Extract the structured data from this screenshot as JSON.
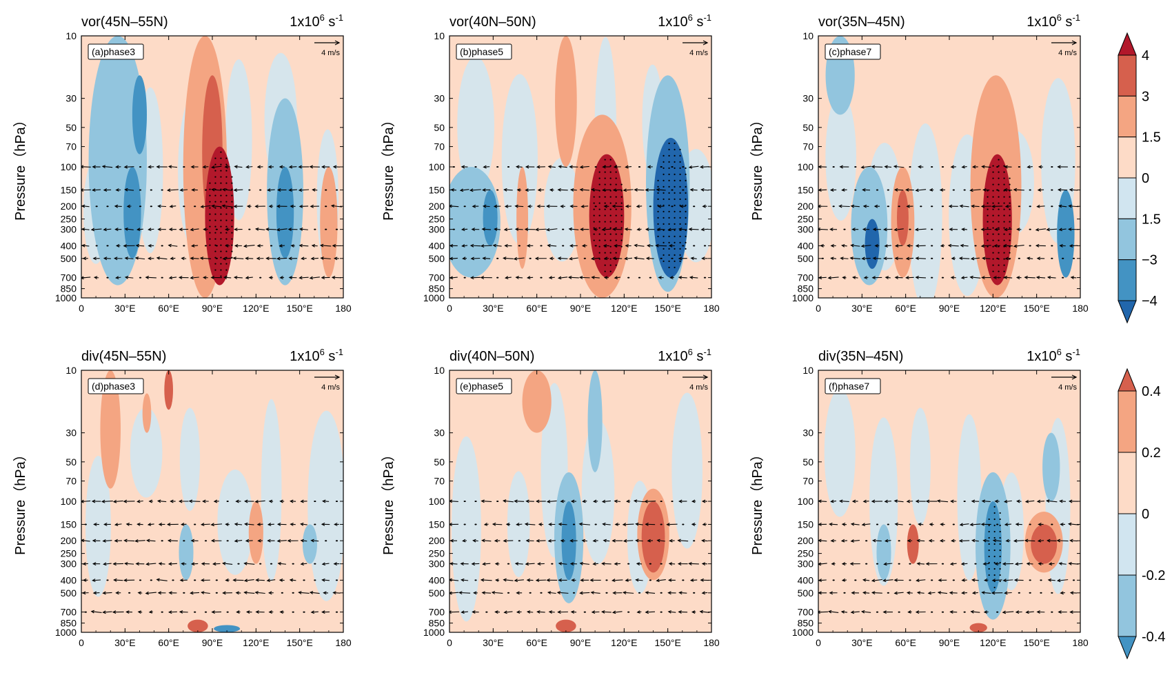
{
  "figure": {
    "panels": [
      {
        "label": "(a)phase3",
        "title": "vor(45N–55N)",
        "units_base": "1x10",
        "units_exp": "6",
        "units_tail": " s",
        "units_tail_exp": "-1",
        "ref_vector": "4 m/s"
      },
      {
        "label": "(b)phase5",
        "title": "vor(40N–50N)",
        "units_base": "1x10",
        "units_exp": "6",
        "units_tail": " s",
        "units_tail_exp": "-1",
        "ref_vector": "4 m/s"
      },
      {
        "label": "(c)phase7",
        "title": "vor(35N–45N)",
        "units_base": "1x10",
        "units_exp": "6",
        "units_tail": " s",
        "units_tail_exp": "-1",
        "ref_vector": "4 m/s"
      },
      {
        "label": "(d)phase3",
        "title": "div(45N–55N)",
        "units_base": "1x10",
        "units_exp": "6",
        "units_tail": " s",
        "units_tail_exp": "-1",
        "ref_vector": "4 m/s"
      },
      {
        "label": "(e)phase5",
        "title": "div(40N–50N)",
        "units_base": "1x10",
        "units_exp": "6",
        "units_tail": " s",
        "units_tail_exp": "-1",
        "ref_vector": "4 m/s"
      },
      {
        "label": "(f)phase7",
        "title": "div(35N–45N)",
        "units_base": "1x10",
        "units_exp": "6",
        "units_tail": " s",
        "units_tail_exp": "-1",
        "ref_vector": "4 m/s"
      }
    ]
  },
  "chart_data": [
    {
      "type": "heatmap",
      "panel": "a",
      "title": "vor(45N–55N)",
      "label": "(a)phase3",
      "variable": "vorticity",
      "xlabel": "",
      "ylabel": "Pressure（hPa）",
      "xlim": [
        0,
        180
      ],
      "ylim": [
        1000,
        10
      ],
      "y_scale": "log",
      "x_ticks": [
        "0",
        "30°E",
        "60°E",
        "90°E",
        "120°E",
        "150°E",
        "180"
      ],
      "y_ticks": [
        "10",
        "30",
        "50",
        "70",
        "100",
        "150",
        "200",
        "250",
        "300",
        "400",
        "500",
        "700",
        "850",
        "1000"
      ],
      "features": [
        {
          "lon": 95,
          "p": 300,
          "value": 4.5,
          "lon_width": 20,
          "p_extent": [
            800,
            70
          ],
          "stippled": true
        },
        {
          "lon": 90,
          "p": 70,
          "value": 3,
          "lon_width": 14,
          "p_extent": [
            300,
            20
          ]
        },
        {
          "lon": 85,
          "p": 20,
          "value": 1.5,
          "lon_width": 30,
          "p_extent": [
            1000,
            10
          ]
        },
        {
          "lon": 35,
          "p": 200,
          "value": -3,
          "lon_width": 12,
          "p_extent": [
            500,
            100
          ]
        },
        {
          "lon": 40,
          "p": 40,
          "value": -3,
          "lon_width": 10,
          "p_extent": [
            80,
            20
          ]
        },
        {
          "lon": 25,
          "p": 150,
          "value": -1.5,
          "lon_width": 40,
          "p_extent": [
            800,
            10
          ]
        },
        {
          "lon": 140,
          "p": 250,
          "value": -3,
          "lon_width": 12,
          "p_extent": [
            500,
            100
          ]
        },
        {
          "lon": 140,
          "p": 100,
          "value": -1.5,
          "lon_width": 25,
          "p_extent": [
            800,
            30
          ]
        },
        {
          "lon": 170,
          "p": 300,
          "value": 1.5,
          "lon_width": 12,
          "p_extent": [
            700,
            100
          ]
        }
      ]
    },
    {
      "type": "heatmap",
      "panel": "b",
      "title": "vor(40N–50N)",
      "label": "(b)phase5",
      "variable": "vorticity",
      "xlabel": "",
      "ylabel": "Pressure（hPa）",
      "xlim": [
        0,
        180
      ],
      "ylim": [
        1000,
        10
      ],
      "y_scale": "log",
      "x_ticks": [
        "0",
        "30°E",
        "60°E",
        "90°E",
        "120°E",
        "150°E",
        "180"
      ],
      "y_ticks": [
        "10",
        "30",
        "50",
        "70",
        "100",
        "150",
        "200",
        "250",
        "300",
        "400",
        "500",
        "700",
        "850",
        "1000"
      ],
      "features": [
        {
          "lon": 108,
          "p": 300,
          "value": 4.5,
          "lon_width": 24,
          "p_extent": [
            700,
            80
          ],
          "stippled": true
        },
        {
          "lon": 105,
          "p": 150,
          "value": 1.5,
          "lon_width": 40,
          "p_extent": [
            1000,
            40
          ]
        },
        {
          "lon": 152,
          "p": 300,
          "value": -4.5,
          "lon_width": 24,
          "p_extent": [
            700,
            60
          ],
          "stippled": true
        },
        {
          "lon": 150,
          "p": 100,
          "value": -1.5,
          "lon_width": 30,
          "p_extent": [
            900,
            20
          ]
        },
        {
          "lon": 28,
          "p": 300,
          "value": -3,
          "lon_width": 10,
          "p_extent": [
            400,
            150
          ]
        },
        {
          "lon": 15,
          "p": 300,
          "value": -1.5,
          "lon_width": 40,
          "p_extent": [
            700,
            100
          ]
        },
        {
          "lon": 50,
          "p": 300,
          "value": 1.5,
          "lon_width": 8,
          "p_extent": [
            600,
            100
          ]
        },
        {
          "lon": 80,
          "p": 20,
          "value": 1.5,
          "lon_width": 15,
          "p_extent": [
            100,
            10
          ]
        }
      ]
    },
    {
      "type": "heatmap",
      "panel": "c",
      "title": "vor(35N–45N)",
      "label": "(c)phase7",
      "variable": "vorticity",
      "xlabel": "",
      "ylabel": "Pressure（hPa）",
      "xlim": [
        0,
        180
      ],
      "ylim": [
        1000,
        10
      ],
      "y_scale": "log",
      "x_ticks": [
        "0",
        "30°E",
        "60°E",
        "90°E",
        "120°E",
        "150°E",
        "180"
      ],
      "y_ticks": [
        "10",
        "30",
        "50",
        "70",
        "100",
        "150",
        "200",
        "250",
        "300",
        "400",
        "500",
        "700",
        "850",
        "1000"
      ],
      "features": [
        {
          "lon": 123,
          "p": 300,
          "value": 4.5,
          "lon_width": 20,
          "p_extent": [
            800,
            80
          ],
          "stippled": true
        },
        {
          "lon": 122,
          "p": 100,
          "value": 1.5,
          "lon_width": 35,
          "p_extent": [
            1000,
            20
          ]
        },
        {
          "lon": 37,
          "p": 400,
          "value": -4.5,
          "lon_width": 10,
          "p_extent": [
            600,
            250
          ]
        },
        {
          "lon": 35,
          "p": 300,
          "value": -1.5,
          "lon_width": 25,
          "p_extent": [
            800,
            100
          ]
        },
        {
          "lon": 58,
          "p": 250,
          "value": 3,
          "lon_width": 8,
          "p_extent": [
            400,
            150
          ]
        },
        {
          "lon": 58,
          "p": 250,
          "value": 1.5,
          "lon_width": 16,
          "p_extent": [
            700,
            100
          ]
        },
        {
          "lon": 170,
          "p": 350,
          "value": -3,
          "lon_width": 12,
          "p_extent": [
            700,
            150
          ]
        },
        {
          "lon": 15,
          "p": 15,
          "value": -1.5,
          "lon_width": 20,
          "p_extent": [
            40,
            10
          ]
        }
      ]
    },
    {
      "type": "heatmap",
      "panel": "d",
      "title": "div(45N–55N)",
      "label": "(d)phase3",
      "variable": "divergence",
      "xlabel": "",
      "ylabel": "Pressure（hPa）",
      "xlim": [
        0,
        180
      ],
      "ylim": [
        1000,
        10
      ],
      "y_scale": "log",
      "x_ticks": [
        "0",
        "30°E",
        "60°E",
        "90°E",
        "120°E",
        "150°E",
        "180"
      ],
      "y_ticks": [
        "10",
        "30",
        "50",
        "70",
        "100",
        "150",
        "200",
        "250",
        "300",
        "400",
        "500",
        "700",
        "850",
        "1000"
      ],
      "features": [
        {
          "lon": 80,
          "p": 920,
          "value": 0.45,
          "lon_width": 14,
          "p_extent": [
            1000,
            800
          ]
        },
        {
          "lon": 100,
          "p": 950,
          "value": -0.45,
          "lon_width": 18,
          "p_extent": [
            1000,
            880
          ]
        },
        {
          "lon": 120,
          "p": 200,
          "value": 0.3,
          "lon_width": 10,
          "p_extent": [
            300,
            100
          ]
        },
        {
          "lon": 72,
          "p": 250,
          "value": -0.3,
          "lon_width": 10,
          "p_extent": [
            400,
            150
          ]
        },
        {
          "lon": 157,
          "p": 200,
          "value": -0.3,
          "lon_width": 10,
          "p_extent": [
            300,
            150
          ]
        },
        {
          "lon": 60,
          "p": 15,
          "value": 0.45,
          "lon_width": 6,
          "p_extent": [
            20,
            10
          ]
        },
        {
          "lon": 20,
          "p": 40,
          "value": 0.2,
          "lon_width": 14,
          "p_extent": [
            80,
            10
          ]
        },
        {
          "lon": 45,
          "p": 20,
          "value": 0.3,
          "lon_width": 6,
          "p_extent": [
            30,
            15
          ]
        }
      ]
    },
    {
      "type": "heatmap",
      "panel": "e",
      "title": "div(40N–50N)",
      "label": "(e)phase5",
      "variable": "divergence",
      "xlabel": "",
      "ylabel": "Pressure（hPa）",
      "xlim": [
        0,
        180
      ],
      "ylim": [
        1000,
        10
      ],
      "y_scale": "log",
      "x_ticks": [
        "0",
        "30°E",
        "60°E",
        "90°E",
        "120°E",
        "150°E",
        "180"
      ],
      "y_ticks": [
        "10",
        "30",
        "50",
        "70",
        "100",
        "150",
        "200",
        "250",
        "300",
        "400",
        "500",
        "700",
        "850",
        "1000"
      ],
      "features": [
        {
          "lon": 140,
          "p": 200,
          "value": 0.45,
          "lon_width": 16,
          "p_extent": [
            350,
            100
          ]
        },
        {
          "lon": 140,
          "p": 200,
          "value": 0.3,
          "lon_width": 22,
          "p_extent": [
            400,
            80
          ]
        },
        {
          "lon": 82,
          "p": 200,
          "value": -0.45,
          "lon_width": 10,
          "p_extent": [
            400,
            100
          ]
        },
        {
          "lon": 82,
          "p": 250,
          "value": -0.2,
          "lon_width": 20,
          "p_extent": [
            600,
            60
          ]
        },
        {
          "lon": 80,
          "p": 930,
          "value": 0.45,
          "lon_width": 14,
          "p_extent": [
            1000,
            800
          ]
        },
        {
          "lon": 100,
          "p": 30,
          "value": -0.3,
          "lon_width": 10,
          "p_extent": [
            60,
            10
          ]
        },
        {
          "lon": 60,
          "p": 15,
          "value": 0.3,
          "lon_width": 20,
          "p_extent": [
            30,
            10
          ]
        }
      ]
    },
    {
      "type": "heatmap",
      "panel": "f",
      "title": "div(35N–45N)",
      "label": "(f)phase7",
      "variable": "divergence",
      "xlabel": "",
      "ylabel": "Pressure（hPa）",
      "xlim": [
        0,
        180
      ],
      "ylim": [
        1000,
        10
      ],
      "y_scale": "log",
      "x_ticks": [
        "0",
        "30°E",
        "60°E",
        "90°E",
        "120°E",
        "150°E",
        "180"
      ],
      "y_ticks": [
        "10",
        "30",
        "50",
        "70",
        "100",
        "150",
        "200",
        "250",
        "300",
        "400",
        "500",
        "700",
        "850",
        "1000"
      ],
      "features": [
        {
          "lon": 120,
          "p": 250,
          "value": -0.45,
          "lon_width": 12,
          "p_extent": [
            500,
            100
          ],
          "stippled": true
        },
        {
          "lon": 120,
          "p": 250,
          "value": -0.2,
          "lon_width": 24,
          "p_extent": [
            800,
            60
          ]
        },
        {
          "lon": 155,
          "p": 200,
          "value": 0.45,
          "lon_width": 18,
          "p_extent": [
            300,
            150
          ]
        },
        {
          "lon": 155,
          "p": 200,
          "value": 0.3,
          "lon_width": 26,
          "p_extent": [
            350,
            120
          ]
        },
        {
          "lon": 45,
          "p": 250,
          "value": -0.3,
          "lon_width": 10,
          "p_extent": [
            400,
            150
          ]
        },
        {
          "lon": 65,
          "p": 200,
          "value": 0.45,
          "lon_width": 8,
          "p_extent": [
            300,
            150
          ]
        },
        {
          "lon": 110,
          "p": 930,
          "value": 0.45,
          "lon_width": 12,
          "p_extent": [
            1000,
            850
          ]
        },
        {
          "lon": 160,
          "p": 60,
          "value": -0.3,
          "lon_width": 12,
          "p_extent": [
            100,
            30
          ]
        }
      ]
    }
  ],
  "colorbars": [
    {
      "for": "vorticity",
      "levels": [
        "4",
        "3",
        "1.5",
        "0",
        "1.5",
        "−3",
        "−4"
      ],
      "colors": [
        "#b2182b",
        "#d6604d",
        "#f4a582",
        "#fddbc7",
        "#d1e5f0",
        "#92c5de",
        "#4393c3",
        "#2166ac"
      ]
    },
    {
      "for": "divergence",
      "levels": [
        "0.4",
        "0.2",
        "0",
        "-0.2",
        "-0.4"
      ],
      "colors": [
        "#d6604d",
        "#f4a582",
        "#fddbc7",
        "#d1e5f0",
        "#92c5de",
        "#4393c3"
      ]
    }
  ]
}
